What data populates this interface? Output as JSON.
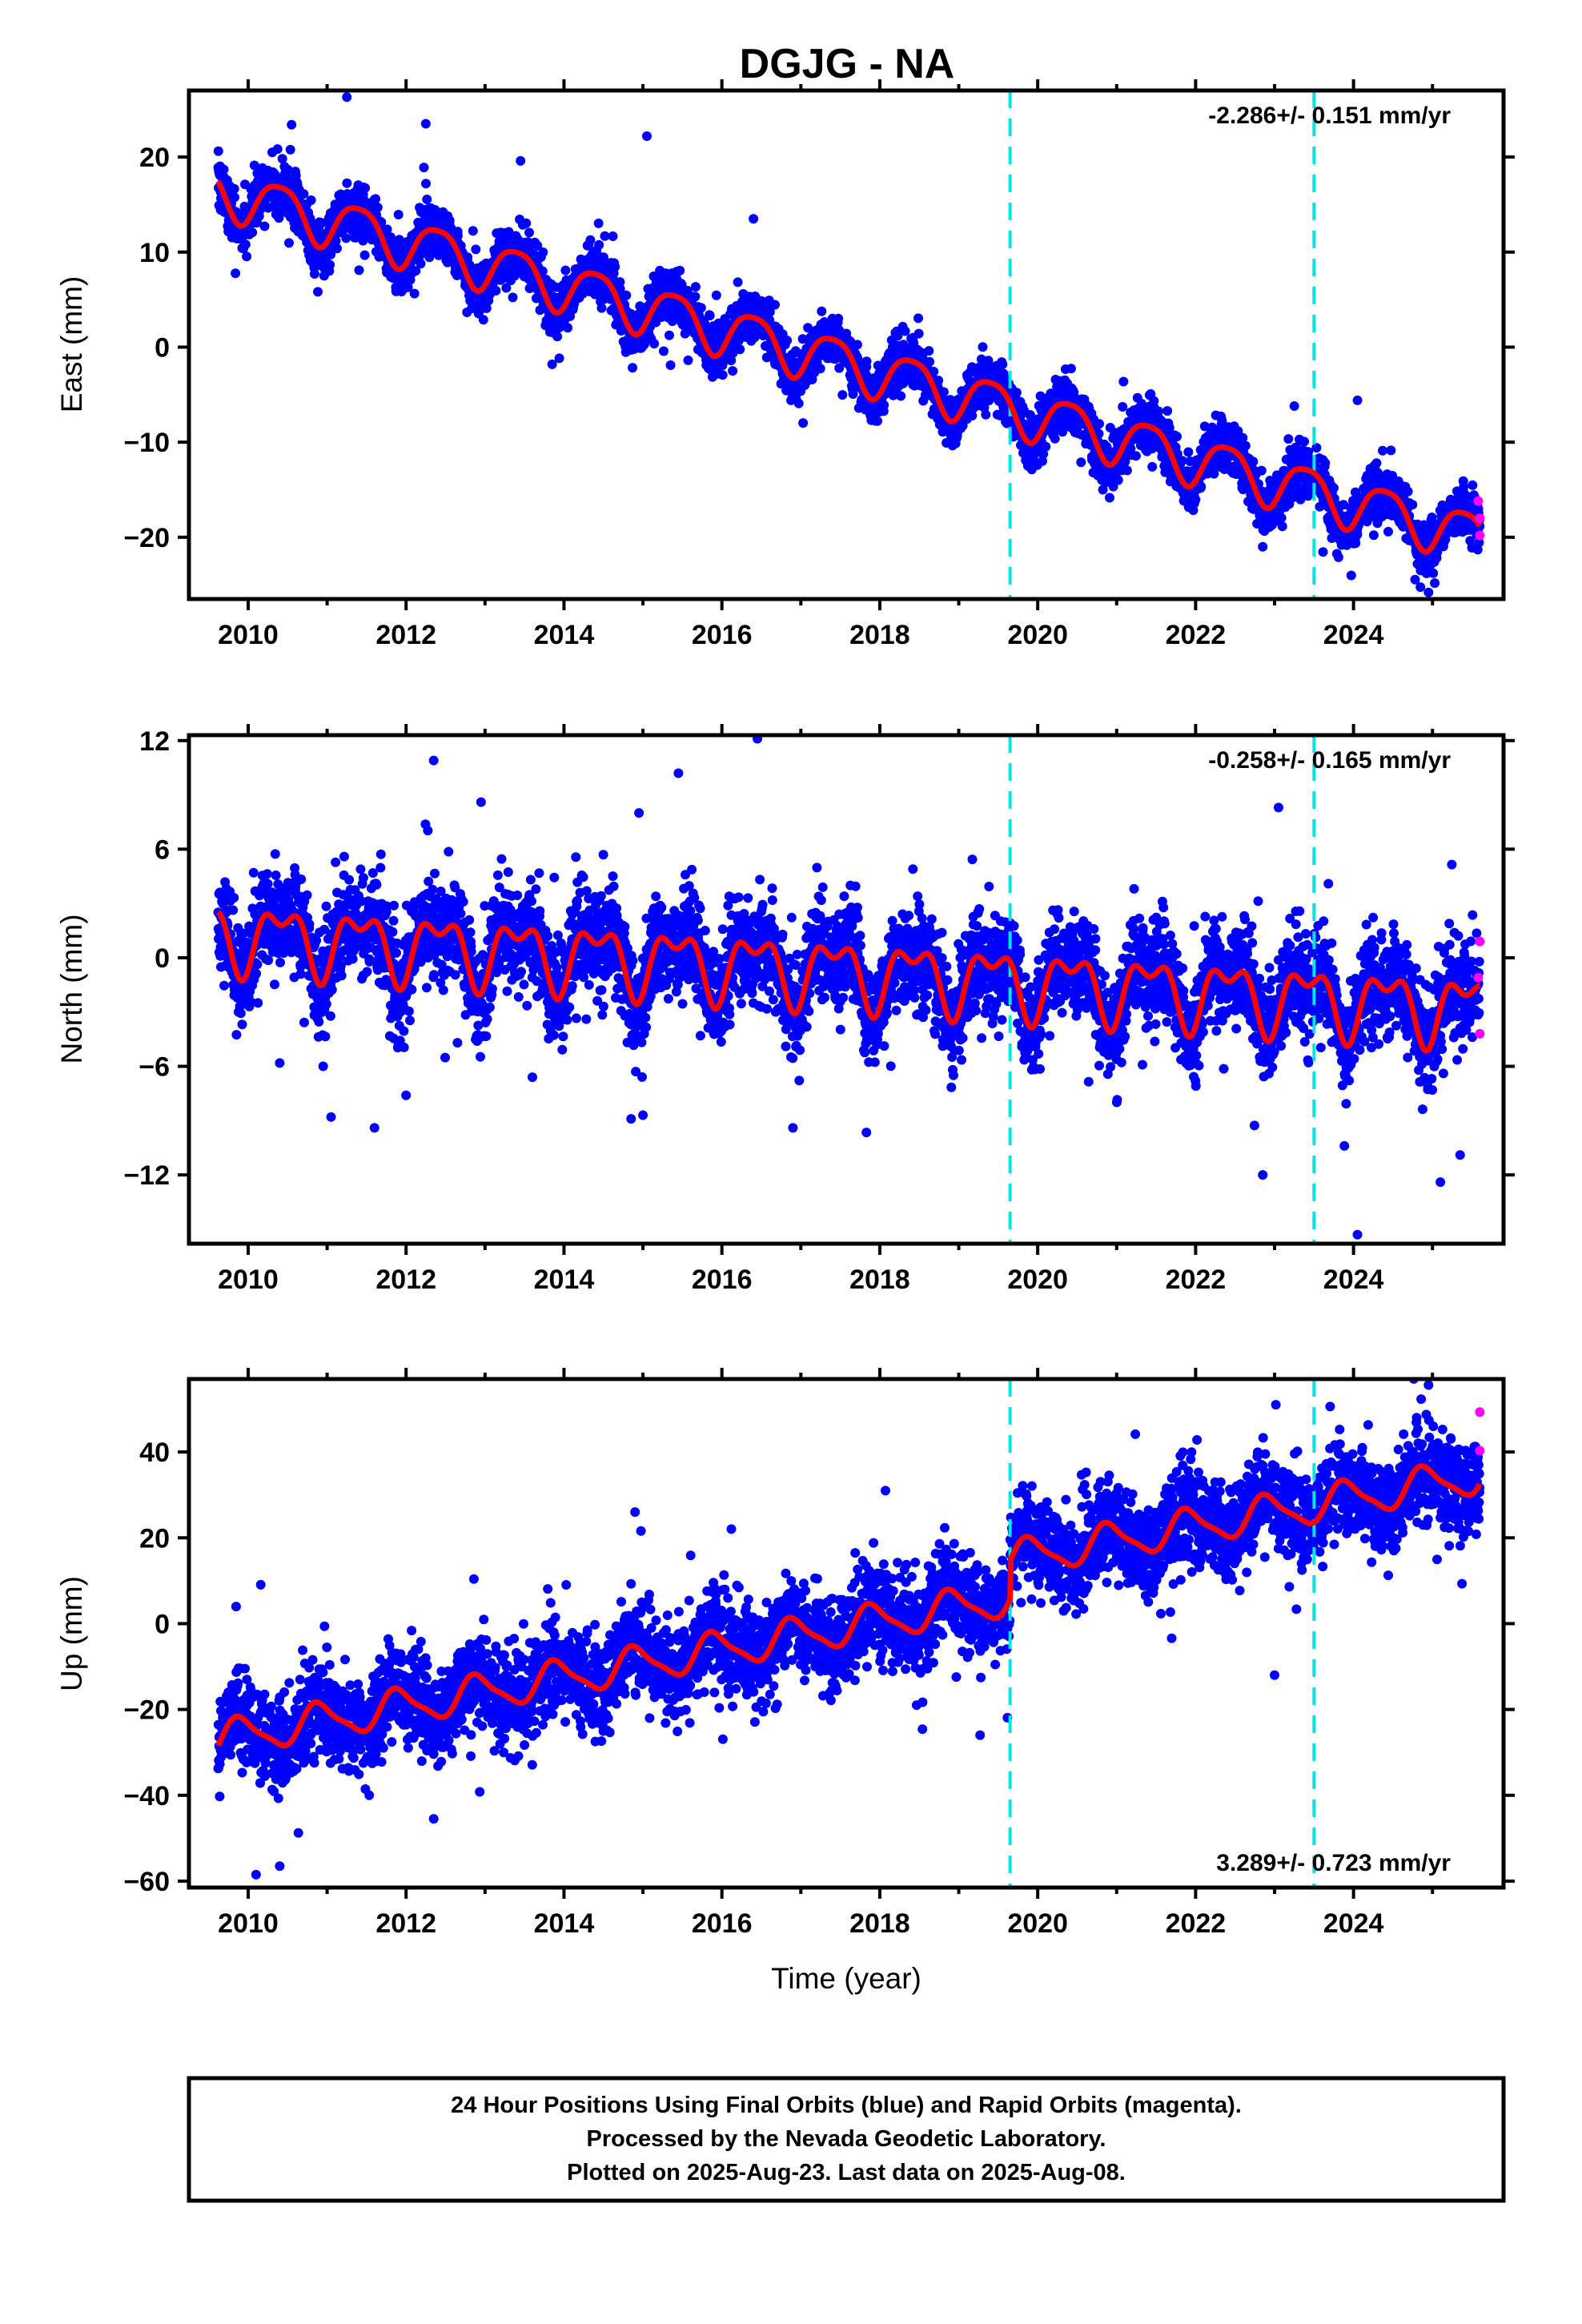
{
  "chart_data": {
    "title": "DGJG - NA",
    "type": "scatter",
    "xlabel": "Time (year)",
    "x_ticks": [
      2010,
      2012,
      2014,
      2016,
      2018,
      2020,
      2022,
      2024
    ],
    "xlim": [
      2009.25,
      2025.9
    ],
    "data_start": 2009.62,
    "data_end": 2025.6,
    "equipment_change_lines": [
      2019.65,
      2023.5
    ],
    "colors": {
      "final_orbits": "#0000ff",
      "rapid_orbits": "#ff00ff",
      "model": "#ff0000",
      "change_line": "#00e5e5"
    },
    "panels": [
      {
        "name": "east",
        "ylabel": "East (mm)",
        "ylim": [
          -26.5,
          27
        ],
        "y_ticks": [
          -20,
          -10,
          0,
          10,
          20
        ],
        "rate_text": "-2.286+/- 0.151 mm/yr",
        "rate_position": "top-right",
        "model": {
          "offset_at_start": 16.5,
          "trend_mm_per_yr": -2.286,
          "annual_amplitude": 2.6,
          "annual_phase_year": 0.4,
          "semiannual_amplitude": 0.5,
          "semiannual_phase_year": 0.15,
          "steps": [],
          "scatter_sigma": 1.3
        },
        "outliers": [
          {
            "x": 2011.25,
            "y": 26.3
          },
          {
            "x": 2012.25,
            "y": 23.5
          },
          {
            "x": 2015.05,
            "y": 22.2
          },
          {
            "x": 2013.45,
            "y": 19.6
          },
          {
            "x": 2016.4,
            "y": 13.5
          },
          {
            "x": 2010.55,
            "y": 23.4
          },
          {
            "x": 2024.05,
            "y": -5.6
          },
          {
            "x": 2023.25,
            "y": -6.2
          },
          {
            "x": 2013.85,
            "y": -1.8
          },
          {
            "x": 2022.85,
            "y": -21.0
          },
          {
            "x": 2024.85,
            "y": -23.5
          },
          {
            "x": 2024.95,
            "y": -25.8
          }
        ],
        "rapid_points": [
          {
            "x": 2025.6,
            "y": -18.0
          },
          {
            "x": 2025.6,
            "y": -19.8
          },
          {
            "x": 2025.58,
            "y": -16.2
          }
        ]
      },
      {
        "name": "north",
        "ylabel": "North (mm)",
        "ylim": [
          -15.8,
          12.3
        ],
        "y_ticks": [
          -12,
          -6,
          0,
          6,
          12
        ],
        "rate_text": "-0.258+/- 0.165 mm/yr",
        "rate_position": "top-right",
        "model": {
          "offset_at_start": 1.3,
          "trend_mm_per_yr": -0.258,
          "annual_amplitude": 1.6,
          "annual_phase_year": 0.42,
          "semiannual_amplitude": 0.9,
          "semiannual_phase_year": 0.17,
          "steps": [],
          "scatter_sigma": 1.3
        },
        "outliers": [
          {
            "x": 2016.45,
            "y": 12.1
          },
          {
            "x": 2012.35,
            "y": 10.9
          },
          {
            "x": 2015.45,
            "y": 10.2
          },
          {
            "x": 2012.95,
            "y": 8.6
          },
          {
            "x": 2023.05,
            "y": 8.3
          },
          {
            "x": 2014.95,
            "y": 8.0
          },
          {
            "x": 2011.05,
            "y": -8.8
          },
          {
            "x": 2011.6,
            "y": -9.4
          },
          {
            "x": 2012.0,
            "y": -7.6
          },
          {
            "x": 2014.85,
            "y": -8.9
          },
          {
            "x": 2015.0,
            "y": -8.7
          },
          {
            "x": 2016.9,
            "y": -9.4
          },
          {
            "x": 2022.85,
            "y": -12.0
          },
          {
            "x": 2024.05,
            "y": -15.3
          },
          {
            "x": 2025.1,
            "y": -12.4
          },
          {
            "x": 2025.35,
            "y": -10.9
          },
          {
            "x": 2010.95,
            "y": -6.0
          },
          {
            "x": 2013.6,
            "y": -6.6
          }
        ],
        "rapid_points": [
          {
            "x": 2025.6,
            "y": 0.9
          },
          {
            "x": 2025.6,
            "y": -4.2
          },
          {
            "x": 2025.58,
            "y": -1.1
          }
        ]
      },
      {
        "name": "up",
        "ylabel": "Up (mm)",
        "ylim": [
          -61.5,
          57
        ],
        "y_ticks": [
          -60,
          -40,
          -20,
          0,
          20,
          40
        ],
        "rate_text": "3.289+/- 0.723 mm/yr",
        "rate_position": "bottom-right",
        "model": {
          "offset_at_start": -27,
          "trend_mm_per_yr": 3.289,
          "annual_amplitude": 4.0,
          "annual_phase_year": 0.9,
          "semiannual_amplitude": 1.0,
          "semiannual_phase_year": 0.3,
          "steps": [
            {
              "x": 2019.65,
              "dy": 9
            }
          ],
          "scatter_sigma": 5.0
        },
        "outliers": [
          {
            "x": 2024.95,
            "y": 55.6
          },
          {
            "x": 2024.8,
            "y": 48.0
          },
          {
            "x": 2022.75,
            "y": 36.0
          },
          {
            "x": 2023.0,
            "y": -12.0
          },
          {
            "x": 2014.9,
            "y": 26.0
          },
          {
            "x": 2012.9,
            "y": -23.0
          },
          {
            "x": 2010.1,
            "y": -58.5
          },
          {
            "x": 2010.4,
            "y": -56.5
          },
          {
            "x": 2012.35,
            "y": -45.5
          }
        ],
        "rapid_points": [
          {
            "x": 2025.6,
            "y": 49.3
          },
          {
            "x": 2025.6,
            "y": 40.3
          }
        ]
      }
    ]
  },
  "footer": {
    "line1": "24 Hour Positions Using Final Orbits (blue) and Rapid Orbits (magenta).",
    "line2": "Processed by the Nevada Geodetic Laboratory.",
    "line3": "Plotted on 2025-Aug-23. Last data on 2025-Aug-08."
  }
}
